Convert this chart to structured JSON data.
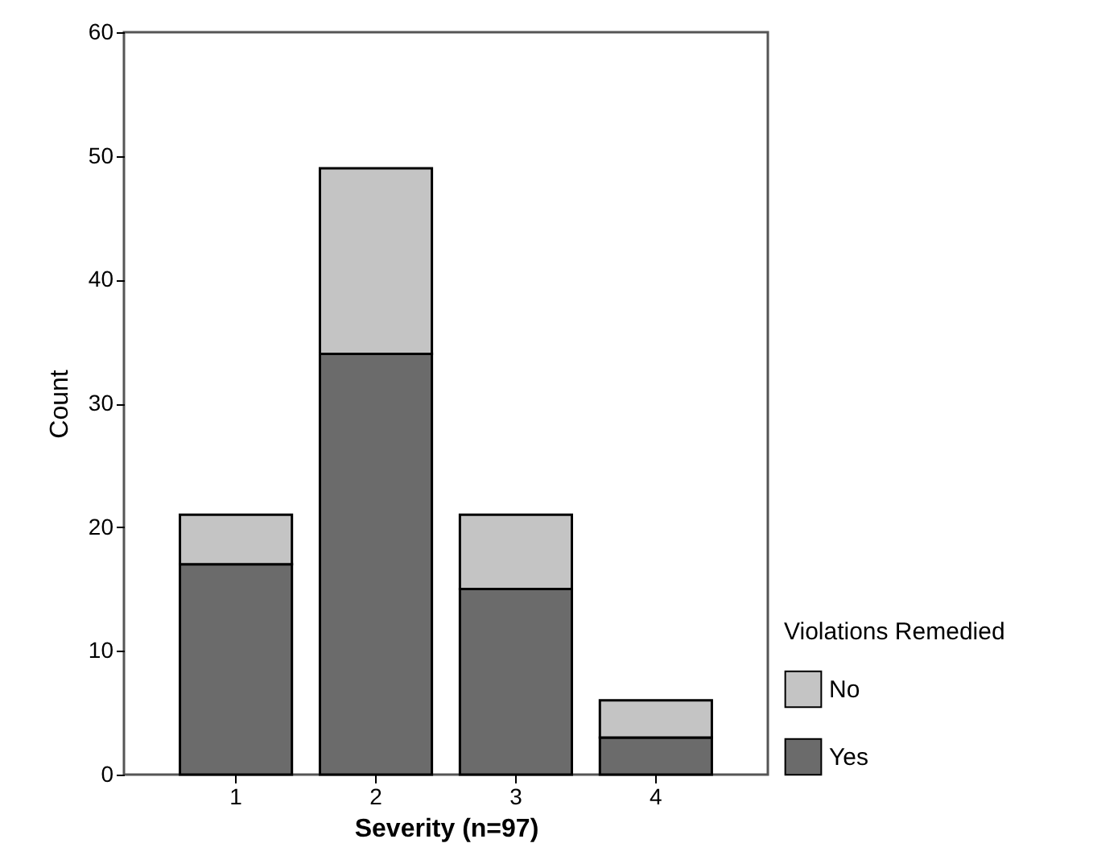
{
  "chart_data": {
    "type": "bar",
    "stacked": true,
    "xlabel": "Severity (n=97)",
    "ylabel": "Count",
    "legend_title": "Violations Remedied",
    "categories": [
      "1",
      "2",
      "3",
      "4"
    ],
    "series": [
      {
        "name": "Yes",
        "color": "#6b6b6b",
        "values": [
          17,
          34,
          15,
          3
        ]
      },
      {
        "name": "No",
        "color": "#c4c4c4",
        "values": [
          4,
          15,
          6,
          3
        ]
      }
    ],
    "ylim": [
      0,
      60
    ],
    "yticks": [
      0,
      10,
      20,
      30,
      40,
      50,
      60
    ],
    "grid": false,
    "legend": "bottom right"
  }
}
